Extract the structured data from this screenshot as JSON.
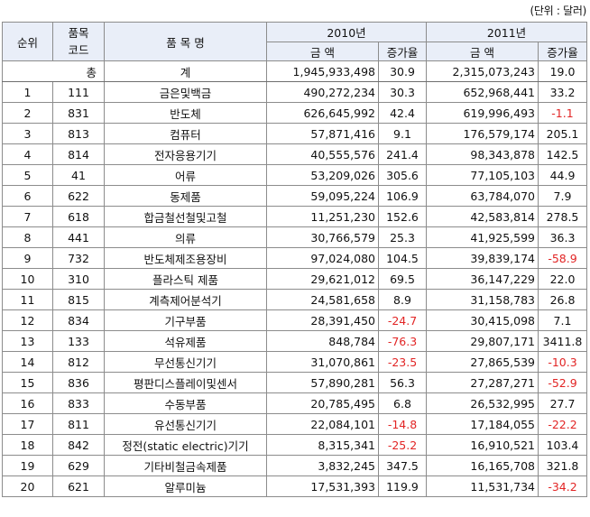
{
  "unit_note": "(단위 : 달러)",
  "header": {
    "rank": "순위",
    "code": "품목\n코드",
    "name": "품 목 명",
    "year1": "2010년",
    "year2": "2011년",
    "amount": "금 액",
    "growth": "증가율"
  },
  "total": {
    "label_a": "총",
    "label_b": "계",
    "amount_2010": "1,945,933,498",
    "growth_2010": "30.9",
    "amount_2011": "2,315,073,243",
    "growth_2011": "19.0"
  },
  "rows": [
    {
      "rank": "1",
      "code": "111",
      "name": "금은및백금",
      "a2010": "490,272,234",
      "g2010": "30.3",
      "a2011": "652,968,441",
      "g2011": "33.2"
    },
    {
      "rank": "2",
      "code": "831",
      "name": "반도체",
      "a2010": "626,645,992",
      "g2010": "42.4",
      "a2011": "619,996,493",
      "g2011": "-1.1"
    },
    {
      "rank": "3",
      "code": "813",
      "name": "컴퓨터",
      "a2010": "57,871,416",
      "g2010": "9.1",
      "a2011": "176,579,174",
      "g2011": "205.1"
    },
    {
      "rank": "4",
      "code": "814",
      "name": "전자응용기기",
      "a2010": "40,555,576",
      "g2010": "241.4",
      "a2011": "98,343,878",
      "g2011": "142.5"
    },
    {
      "rank": "5",
      "code": "41",
      "name": "어류",
      "a2010": "53,209,026",
      "g2010": "305.6",
      "a2011": "77,105,103",
      "g2011": "44.9"
    },
    {
      "rank": "6",
      "code": "622",
      "name": "동제품",
      "a2010": "59,095,224",
      "g2010": "106.9",
      "a2011": "63,784,070",
      "g2011": "7.9"
    },
    {
      "rank": "7",
      "code": "618",
      "name": "합금철선철및고철",
      "a2010": "11,251,230",
      "g2010": "152.6",
      "a2011": "42,583,814",
      "g2011": "278.5"
    },
    {
      "rank": "8",
      "code": "441",
      "name": "의류",
      "a2010": "30,766,579",
      "g2010": "25.3",
      "a2011": "41,925,599",
      "g2011": "36.3"
    },
    {
      "rank": "9",
      "code": "732",
      "name": "반도체제조용장비",
      "a2010": "97,024,080",
      "g2010": "104.5",
      "a2011": "39,839,174",
      "g2011": "-58.9"
    },
    {
      "rank": "10",
      "code": "310",
      "name": "플라스틱 제품",
      "a2010": "29,621,012",
      "g2010": "69.5",
      "a2011": "36,147,229",
      "g2011": "22.0"
    },
    {
      "rank": "11",
      "code": "815",
      "name": "계측제어분석기",
      "a2010": "24,581,658",
      "g2010": "8.9",
      "a2011": "31,158,783",
      "g2011": "26.8"
    },
    {
      "rank": "12",
      "code": "834",
      "name": "기구부품",
      "a2010": "28,391,450",
      "g2010": "-24.7",
      "a2011": "30,415,098",
      "g2011": "7.1"
    },
    {
      "rank": "13",
      "code": "133",
      "name": "석유제품",
      "a2010": "848,784",
      "g2010": "-76.3",
      "a2011": "29,807,171",
      "g2011": "3411.8"
    },
    {
      "rank": "14",
      "code": "812",
      "name": "무선통신기기",
      "a2010": "31,070,861",
      "g2010": "-23.5",
      "a2011": "27,865,539",
      "g2011": "-10.3"
    },
    {
      "rank": "15",
      "code": "836",
      "name": "평판디스플레이및센서",
      "a2010": "57,890,281",
      "g2010": "56.3",
      "a2011": "27,287,271",
      "g2011": "-52.9"
    },
    {
      "rank": "16",
      "code": "833",
      "name": "수동부품",
      "a2010": "20,785,495",
      "g2010": "6.8",
      "a2011": "26,532,995",
      "g2011": "27.7"
    },
    {
      "rank": "17",
      "code": "811",
      "name": "유선통신기기",
      "a2010": "22,084,101",
      "g2010": "-14.8",
      "a2011": "17,184,055",
      "g2011": "-22.2"
    },
    {
      "rank": "18",
      "code": "842",
      "name": "정전(static electric)기기",
      "a2010": "8,315,341",
      "g2010": "-25.2",
      "a2011": "16,910,521",
      "g2011": "103.4"
    },
    {
      "rank": "19",
      "code": "629",
      "name": "기타비철금속제품",
      "a2010": "3,832,245",
      "g2010": "347.5",
      "a2011": "16,165,708",
      "g2011": "321.8"
    },
    {
      "rank": "20",
      "code": "621",
      "name": "알루미늄",
      "a2010": "17,531,393",
      "g2010": "119.9",
      "a2011": "11,531,734",
      "g2011": "-34.2"
    }
  ]
}
